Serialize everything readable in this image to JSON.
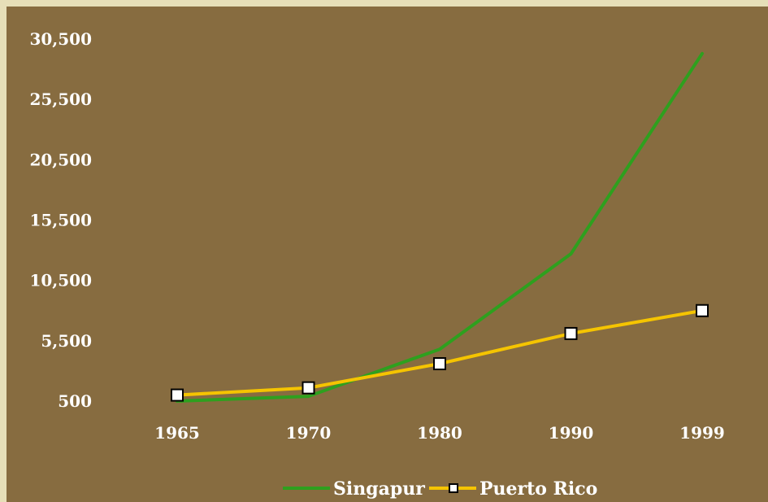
{
  "colors": {
    "background": "#e6dfb8",
    "plot_area": "#876c40",
    "text": "#ffffff",
    "singapur": "#2ea01e",
    "puerto_rico": "#f5c400",
    "marker_fill": "#ffffff",
    "marker_stroke": "#000000"
  },
  "chart_data": {
    "type": "line",
    "title": "",
    "xlabel": "",
    "ylabel": "",
    "categories": [
      "1965",
      "1970",
      "1980",
      "1990",
      "1999"
    ],
    "y_ticks": [
      500,
      5500,
      10500,
      15500,
      20500,
      25500,
      30500
    ],
    "y_tick_labels": [
      "500",
      "5,500",
      "10,500",
      "15,500",
      "20,500",
      "25,500",
      "30,500"
    ],
    "ylim": [
      500,
      30500
    ],
    "grid": false,
    "legend_position": "bottom",
    "series": [
      {
        "name": "Singapur",
        "values": [
          500,
          900,
          4800,
          12700,
          29300
        ],
        "color_key": "singapur",
        "marker": "none"
      },
      {
        "name": "Puerto Rico",
        "values": [
          1000,
          1600,
          3600,
          6100,
          8000
        ],
        "color_key": "puerto_rico",
        "marker": "square"
      }
    ]
  }
}
